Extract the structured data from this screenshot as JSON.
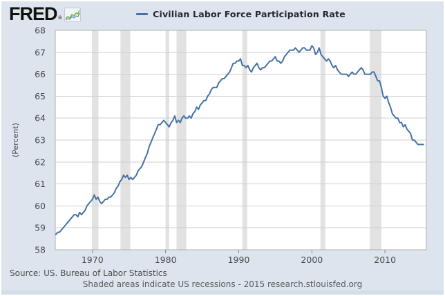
{
  "header": {
    "logo_text": "FRED",
    "logo_reg": "®",
    "logo_icon": "fred-sparkline-icon"
  },
  "legend": {
    "marker_color": "#4572a7",
    "label": "Civilian Labor Force Participation Rate"
  },
  "footer": {
    "source": "Source: US. Bureau of Labor Statistics",
    "note": "Shaded areas indicate US recessions - 2015 research.stlouisfed.org"
  },
  "colors": {
    "panel_bg": "#dde4ed",
    "plot_bg": "#ffffff",
    "gridline": "#cfcfcf",
    "plot_border": "#b0b0b0",
    "recession_band": "#e2e2e2",
    "line": "#4572a7",
    "axis_text": "#4a4a4a",
    "tick": "#8a8a8a"
  },
  "chart_data": {
    "type": "line",
    "title": "Civilian Labor Force Participation Rate",
    "xlabel": "",
    "ylabel": "(Percent)",
    "ylim": [
      58,
      68
    ],
    "xlim": [
      1964.92,
      2015.65
    ],
    "yticks": [
      58,
      59,
      60,
      61,
      62,
      63,
      64,
      65,
      66,
      67,
      68
    ],
    "xticks": [
      1970,
      1980,
      1990,
      2000,
      2010
    ],
    "grid": "horizontal",
    "legend_position": "top-center",
    "recessions": [
      [
        1969.92,
        1970.83
      ],
      [
        1973.83,
        1975.17
      ],
      [
        1980.0,
        1980.5
      ],
      [
        1981.5,
        1982.83
      ],
      [
        1990.5,
        1991.17
      ],
      [
        2001.17,
        2001.83
      ],
      [
        2007.92,
        2009.5
      ]
    ],
    "series": [
      {
        "name": "Civilian Labor Force Participation Rate",
        "color": "#4572a7",
        "x_start": 1965.0,
        "x_step": 0.25,
        "values": [
          58.7,
          58.8,
          58.8,
          58.9,
          59.0,
          59.1,
          59.2,
          59.3,
          59.4,
          59.5,
          59.6,
          59.6,
          59.5,
          59.7,
          59.6,
          59.7,
          59.8,
          60.0,
          60.1,
          60.2,
          60.3,
          60.5,
          60.3,
          60.4,
          60.2,
          60.1,
          60.2,
          60.3,
          60.3,
          60.4,
          60.4,
          60.5,
          60.6,
          60.8,
          60.9,
          61.1,
          61.2,
          61.4,
          61.3,
          61.4,
          61.2,
          61.3,
          61.2,
          61.3,
          61.4,
          61.6,
          61.7,
          61.8,
          62.0,
          62.2,
          62.4,
          62.7,
          62.9,
          63.1,
          63.3,
          63.5,
          63.7,
          63.7,
          63.8,
          63.9,
          63.8,
          63.7,
          63.6,
          63.8,
          63.9,
          64.1,
          63.8,
          63.9,
          63.8,
          64.0,
          64.1,
          64.0,
          64.0,
          64.1,
          64.0,
          64.2,
          64.3,
          64.5,
          64.4,
          64.6,
          64.7,
          64.8,
          64.8,
          65.0,
          65.1,
          65.3,
          65.4,
          65.4,
          65.4,
          65.6,
          65.7,
          65.8,
          65.8,
          65.9,
          66.0,
          66.1,
          66.3,
          66.5,
          66.5,
          66.6,
          66.6,
          66.7,
          66.4,
          66.4,
          66.3,
          66.4,
          66.2,
          66.1,
          66.3,
          66.4,
          66.5,
          66.3,
          66.2,
          66.3,
          66.3,
          66.4,
          66.5,
          66.6,
          66.6,
          66.7,
          66.8,
          66.6,
          66.6,
          66.5,
          66.6,
          66.8,
          66.9,
          67.0,
          67.1,
          67.1,
          67.1,
          67.2,
          67.1,
          67.0,
          67.1,
          67.2,
          67.2,
          67.1,
          67.1,
          67.1,
          67.3,
          67.2,
          66.9,
          67.0,
          67.2,
          66.9,
          66.8,
          66.7,
          66.6,
          66.7,
          66.6,
          66.4,
          66.3,
          66.4,
          66.2,
          66.1,
          66.0,
          66.0,
          66.0,
          66.0,
          65.9,
          66.0,
          66.1,
          66.0,
          66.0,
          66.1,
          66.2,
          66.3,
          66.2,
          66.0,
          66.0,
          66.0,
          66.0,
          66.1,
          66.1,
          65.9,
          65.7,
          65.7,
          65.4,
          65.0,
          64.9,
          65.0,
          64.7,
          64.5,
          64.2,
          64.1,
          64.0,
          64.0,
          63.8,
          63.8,
          63.6,
          63.7,
          63.5,
          63.4,
          63.3,
          63.0,
          63.0,
          62.9,
          62.8,
          62.8,
          62.8,
          62.8
        ]
      }
    ]
  }
}
